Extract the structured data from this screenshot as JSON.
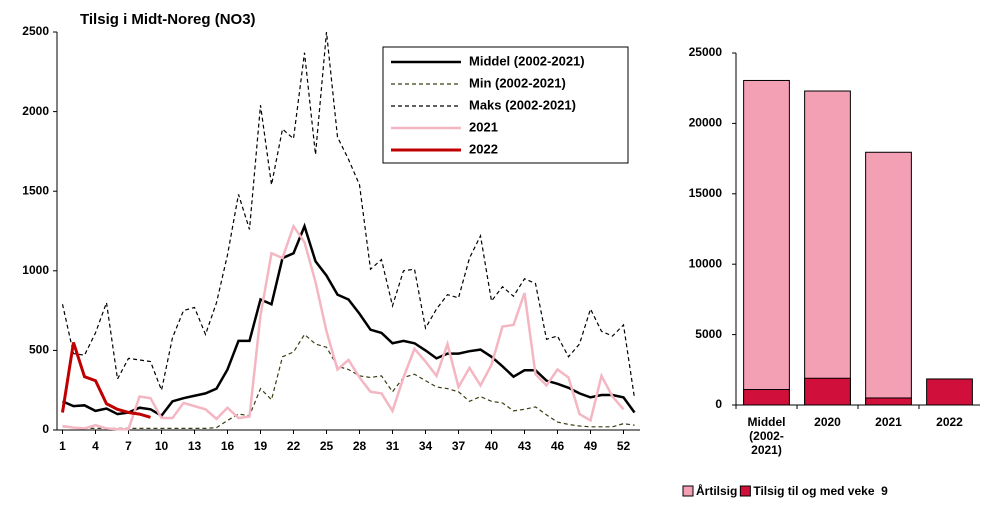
{
  "chart_data": [
    {
      "type": "line",
      "title": "Tilsig i Midt-Noreg (NO3)",
      "x": [
        1,
        2,
        3,
        4,
        5,
        6,
        7,
        8,
        9,
        10,
        11,
        12,
        13,
        14,
        15,
        16,
        17,
        18,
        19,
        20,
        21,
        22,
        23,
        24,
        25,
        26,
        27,
        28,
        29,
        30,
        31,
        32,
        33,
        34,
        35,
        36,
        37,
        38,
        39,
        40,
        41,
        42,
        43,
        44,
        45,
        46,
        47,
        48,
        49,
        50,
        51,
        52,
        53
      ],
      "xlim": [
        0.5,
        53.5
      ],
      "xticks": [
        1,
        4,
        7,
        10,
        13,
        16,
        19,
        22,
        25,
        28,
        31,
        34,
        37,
        40,
        43,
        46,
        49,
        52
      ],
      "ylim": [
        0,
        2500
      ],
      "yticks": [
        0,
        500,
        1000,
        1500,
        2000,
        2500
      ],
      "legend": "upper right",
      "series": [
        {
          "name": "Middel (2002-2021)",
          "color": "#000000",
          "line_style": "solid",
          "line_width": 2.5,
          "values": [
            180,
            150,
            155,
            120,
            135,
            100,
            110,
            140,
            130,
            90,
            180,
            200,
            215,
            230,
            260,
            380,
            560,
            560,
            820,
            790,
            1080,
            1110,
            1280,
            1060,
            970,
            850,
            820,
            730,
            630,
            610,
            545,
            560,
            545,
            500,
            450,
            480,
            480,
            495,
            505,
            460,
            400,
            335,
            375,
            375,
            310,
            290,
            265,
            230,
            205,
            220,
            220,
            205,
            110
          ]
        },
        {
          "name": "Min (2002-2021)",
          "color": "#3c3c14",
          "line_style": "dashed",
          "line_width": 1.2,
          "values": [
            20,
            15,
            10,
            10,
            10,
            10,
            10,
            10,
            10,
            10,
            10,
            10,
            10,
            10,
            15,
            60,
            100,
            90,
            260,
            190,
            460,
            490,
            600,
            540,
            520,
            400,
            380,
            340,
            330,
            340,
            240,
            330,
            350,
            310,
            270,
            260,
            240,
            180,
            210,
            180,
            170,
            120,
            130,
            145,
            95,
            50,
            35,
            25,
            20,
            20,
            20,
            40,
            30
          ]
        },
        {
          "name": "Maks (2002-2021)",
          "color": "#000000",
          "line_style": "dashed",
          "line_width": 1.2,
          "values": [
            790,
            480,
            470,
            610,
            800,
            320,
            450,
            440,
            430,
            250,
            580,
            750,
            770,
            600,
            800,
            1100,
            1480,
            1260,
            2040,
            1540,
            1890,
            1830,
            2370,
            1730,
            2500,
            1840,
            1700,
            1540,
            1010,
            1070,
            780,
            1000,
            1010,
            640,
            760,
            850,
            830,
            1080,
            1220,
            810,
            900,
            840,
            950,
            920,
            570,
            590,
            460,
            540,
            760,
            620,
            590,
            660,
            200
          ]
        },
        {
          "name": "2021",
          "color": "#f4b6c2",
          "line_style": "solid",
          "line_width": 2.5,
          "values": [
            25,
            15,
            10,
            30,
            10,
            5,
            5,
            210,
            200,
            75,
            75,
            170,
            150,
            130,
            70,
            140,
            75,
            85,
            720,
            1110,
            1080,
            1280,
            1180,
            930,
            620,
            380,
            440,
            330,
            240,
            230,
            120,
            330,
            510,
            430,
            340,
            540,
            270,
            390,
            280,
            410,
            650,
            660,
            860,
            350,
            280,
            380,
            330,
            100,
            60,
            340,
            210,
            130,
            null
          ]
        },
        {
          "name": "2022",
          "color": "#c00000",
          "line_style": "solid",
          "line_width": 3,
          "values": [
            110,
            550,
            335,
            310,
            165,
            130,
            110,
            100,
            80,
            null,
            null,
            null,
            null,
            null,
            null,
            null,
            null,
            null,
            null,
            null,
            null,
            null,
            null,
            null,
            null,
            null,
            null,
            null,
            null,
            null,
            null,
            null,
            null,
            null,
            null,
            null,
            null,
            null,
            null,
            null,
            null,
            null,
            null,
            null,
            null,
            null,
            null,
            null,
            null,
            null,
            null,
            null,
            null
          ]
        }
      ]
    },
    {
      "type": "bar",
      "overlay": true,
      "categories": [
        "Middel (2002-2021)",
        "2020",
        "2021",
        "2022"
      ],
      "ylim": [
        0,
        25000
      ],
      "yticks": [
        0,
        5000,
        10000,
        15000,
        20000,
        25000
      ],
      "legend": "bottom",
      "series": [
        {
          "name": "Årtilsig",
          "color": "#f4a0b4",
          "values": [
            23050,
            22300,
            17950,
            null
          ]
        },
        {
          "name": "Tilsig til og med veke  9",
          "color": "#d0103a",
          "values": [
            1100,
            1900,
            500,
            1850
          ]
        }
      ]
    }
  ]
}
